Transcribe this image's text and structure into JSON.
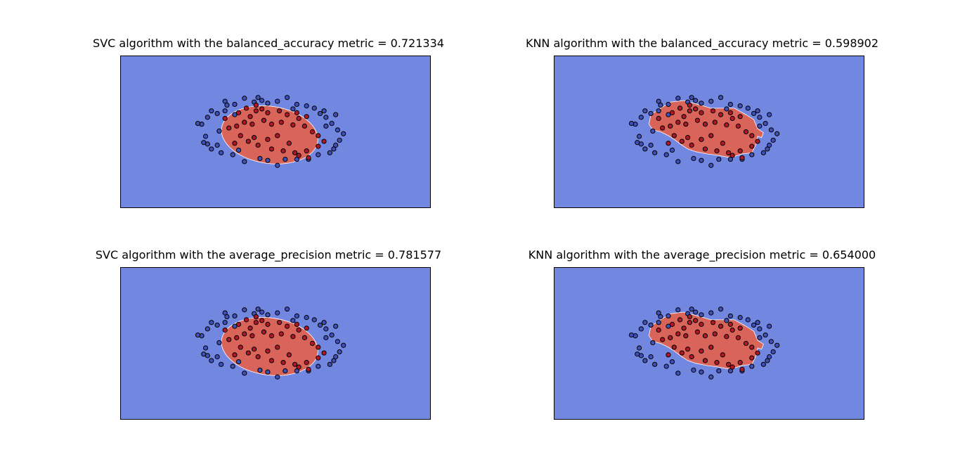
{
  "chart_data": [
    {
      "type": "scatter",
      "plot_kind": "decision-boundary",
      "title": "SVC algorithm with the balanced_accuracy metric = 0.721334",
      "xlabel": "",
      "ylabel": "",
      "grid": false,
      "ticks": false,
      "classifier": "SVC",
      "metric": "balanced_accuracy",
      "score": 0.721334,
      "boundary_shape": "ellipse",
      "region_colors": {
        "background": "#7287e0",
        "positive": "#d8645a"
      }
    },
    {
      "type": "scatter",
      "plot_kind": "decision-boundary",
      "title": "KNN algorithm with the balanced_accuracy metric = 0.598902",
      "xlabel": "",
      "ylabel": "",
      "grid": false,
      "ticks": false,
      "classifier": "KNN",
      "metric": "balanced_accuracy",
      "score": 0.598902,
      "boundary_shape": "irregular",
      "region_colors": {
        "background": "#7287e0",
        "positive": "#d8645a"
      }
    },
    {
      "type": "scatter",
      "plot_kind": "decision-boundary",
      "title": "SVC algorithm with the average_precision metric = 0.781577",
      "xlabel": "",
      "ylabel": "",
      "grid": false,
      "ticks": false,
      "classifier": "SVC",
      "metric": "average_precision",
      "score": 0.781577,
      "boundary_shape": "ellipse",
      "region_colors": {
        "background": "#7287e0",
        "positive": "#d8645a"
      }
    },
    {
      "type": "scatter",
      "plot_kind": "decision-boundary",
      "title": "KNN algorithm with the average_precision metric = 0.654000",
      "xlabel": "",
      "ylabel": "",
      "grid": false,
      "ticks": false,
      "classifier": "KNN",
      "metric": "average_precision",
      "score": 0.654,
      "boundary_shape": "irregular",
      "region_colors": {
        "background": "#7287e0",
        "positive": "#d8645a"
      }
    }
  ],
  "scatter_points": {
    "xlim": [
      -4,
      4
    ],
    "ylim": [
      -2,
      2
    ],
    "point_colors": {
      "outer": "#4050b8",
      "inner": "#b01828",
      "edge": "#000000"
    },
    "outer": [
      [
        -1.3,
        0.8
      ],
      [
        -1.25,
        0.7
      ],
      [
        -1.05,
        0.72
      ],
      [
        -0.8,
        0.88
      ],
      [
        -0.55,
        0.78
      ],
      [
        -0.45,
        0.9
      ],
      [
        -0.35,
        0.82
      ],
      [
        -0.2,
        0.75
      ],
      [
        0.05,
        0.8
      ],
      [
        0.3,
        0.9
      ],
      [
        0.55,
        0.72
      ],
      [
        0.8,
        0.68
      ],
      [
        1.0,
        0.62
      ],
      [
        1.15,
        0.48
      ],
      [
        1.3,
        0.38
      ],
      [
        1.45,
        0.22
      ],
      [
        1.6,
        0.05
      ],
      [
        1.75,
        -0.05
      ],
      [
        1.65,
        -0.22
      ],
      [
        1.55,
        -0.35
      ],
      [
        1.5,
        -0.45
      ],
      [
        1.4,
        -0.55
      ],
      [
        1.1,
        -0.6
      ],
      [
        0.85,
        -0.72
      ],
      [
        0.55,
        -0.72
      ],
      [
        0.25,
        -0.72
      ],
      [
        0.05,
        -0.88
      ],
      [
        -0.2,
        -0.75
      ],
      [
        -0.4,
        -0.7
      ],
      [
        -0.8,
        -0.78
      ],
      [
        -1.1,
        -0.6
      ],
      [
        -1.4,
        -0.55
      ],
      [
        -1.65,
        -0.45
      ],
      [
        -1.75,
        -0.32
      ],
      [
        -1.85,
        -0.28
      ],
      [
        -1.8,
        -0.12
      ],
      [
        -1.9,
        0.2
      ],
      [
        -2.0,
        0.22
      ],
      [
        -1.75,
        0.38
      ],
      [
        -1.65,
        0.55
      ],
      [
        -1.5,
        0.48
      ],
      [
        -1.3,
        0.55
      ],
      [
        -1.05,
        0.45
      ],
      [
        1.55,
        0.45
      ],
      [
        1.25,
        0.55
      ],
      [
        -0.95,
        -0.48
      ],
      [
        -1.45,
        0.02
      ],
      [
        1.3,
        0.15
      ],
      [
        -1.5,
        -0.35
      ],
      [
        0.45,
        0.6
      ]
    ],
    "inner": [
      [
        -0.75,
        0.62
      ],
      [
        -0.5,
        0.55
      ],
      [
        -0.35,
        0.6
      ],
      [
        -0.2,
        0.5
      ],
      [
        0.1,
        0.55
      ],
      [
        0.3,
        0.45
      ],
      [
        0.55,
        0.5
      ],
      [
        0.8,
        0.4
      ],
      [
        0.6,
        0.35
      ],
      [
        -0.65,
        0.4
      ],
      [
        -0.8,
        0.25
      ],
      [
        -1.0,
        0.15
      ],
      [
        -0.6,
        0.2
      ],
      [
        -0.3,
        0.3
      ],
      [
        -0.1,
        0.2
      ],
      [
        0.15,
        0.25
      ],
      [
        0.45,
        0.18
      ],
      [
        0.75,
        0.15
      ],
      [
        0.95,
        0.0
      ],
      [
        1.1,
        -0.1
      ],
      [
        1.25,
        -0.25
      ],
      [
        1.1,
        -0.38
      ],
      [
        0.8,
        -0.5
      ],
      [
        0.5,
        -0.55
      ],
      [
        0.2,
        -0.5
      ],
      [
        -0.1,
        -0.45
      ],
      [
        -0.45,
        -0.35
      ],
      [
        -0.7,
        -0.25
      ],
      [
        -0.9,
        -0.1
      ],
      [
        -1.2,
        0.1
      ],
      [
        -1.3,
        0.35
      ],
      [
        -0.95,
        0.5
      ],
      [
        -0.2,
        -0.2
      ],
      [
        0.05,
        -0.1
      ],
      [
        -0.55,
        -0.15
      ],
      [
        0.35,
        -0.3
      ],
      [
        -1.05,
        -0.3
      ],
      [
        0.6,
        -0.62
      ],
      [
        0.85,
        -0.68
      ],
      [
        -0.5,
        0.7
      ]
    ],
    "knn_boundary_polygon": [
      [
        -1.5,
        0.45
      ],
      [
        -1.25,
        0.62
      ],
      [
        -1.0,
        0.78
      ],
      [
        -0.65,
        0.82
      ],
      [
        -0.3,
        0.72
      ],
      [
        0.05,
        0.62
      ],
      [
        0.35,
        0.62
      ],
      [
        0.65,
        0.62
      ],
      [
        0.95,
        0.45
      ],
      [
        1.15,
        0.32
      ],
      [
        1.25,
        0.08
      ],
      [
        1.4,
        -0.02
      ],
      [
        1.35,
        -0.15
      ],
      [
        1.25,
        -0.12
      ],
      [
        1.2,
        -0.35
      ],
      [
        1.1,
        -0.55
      ],
      [
        0.85,
        -0.58
      ],
      [
        0.55,
        -0.68
      ],
      [
        0.25,
        -0.62
      ],
      [
        -0.05,
        -0.58
      ],
      [
        -0.35,
        -0.52
      ],
      [
        -0.55,
        -0.45
      ],
      [
        -0.7,
        -0.35
      ],
      [
        -0.9,
        -0.2
      ],
      [
        -1.05,
        -0.1
      ],
      [
        -1.25,
        0.0
      ],
      [
        -1.45,
        0.05
      ],
      [
        -1.55,
        0.2
      ]
    ]
  }
}
